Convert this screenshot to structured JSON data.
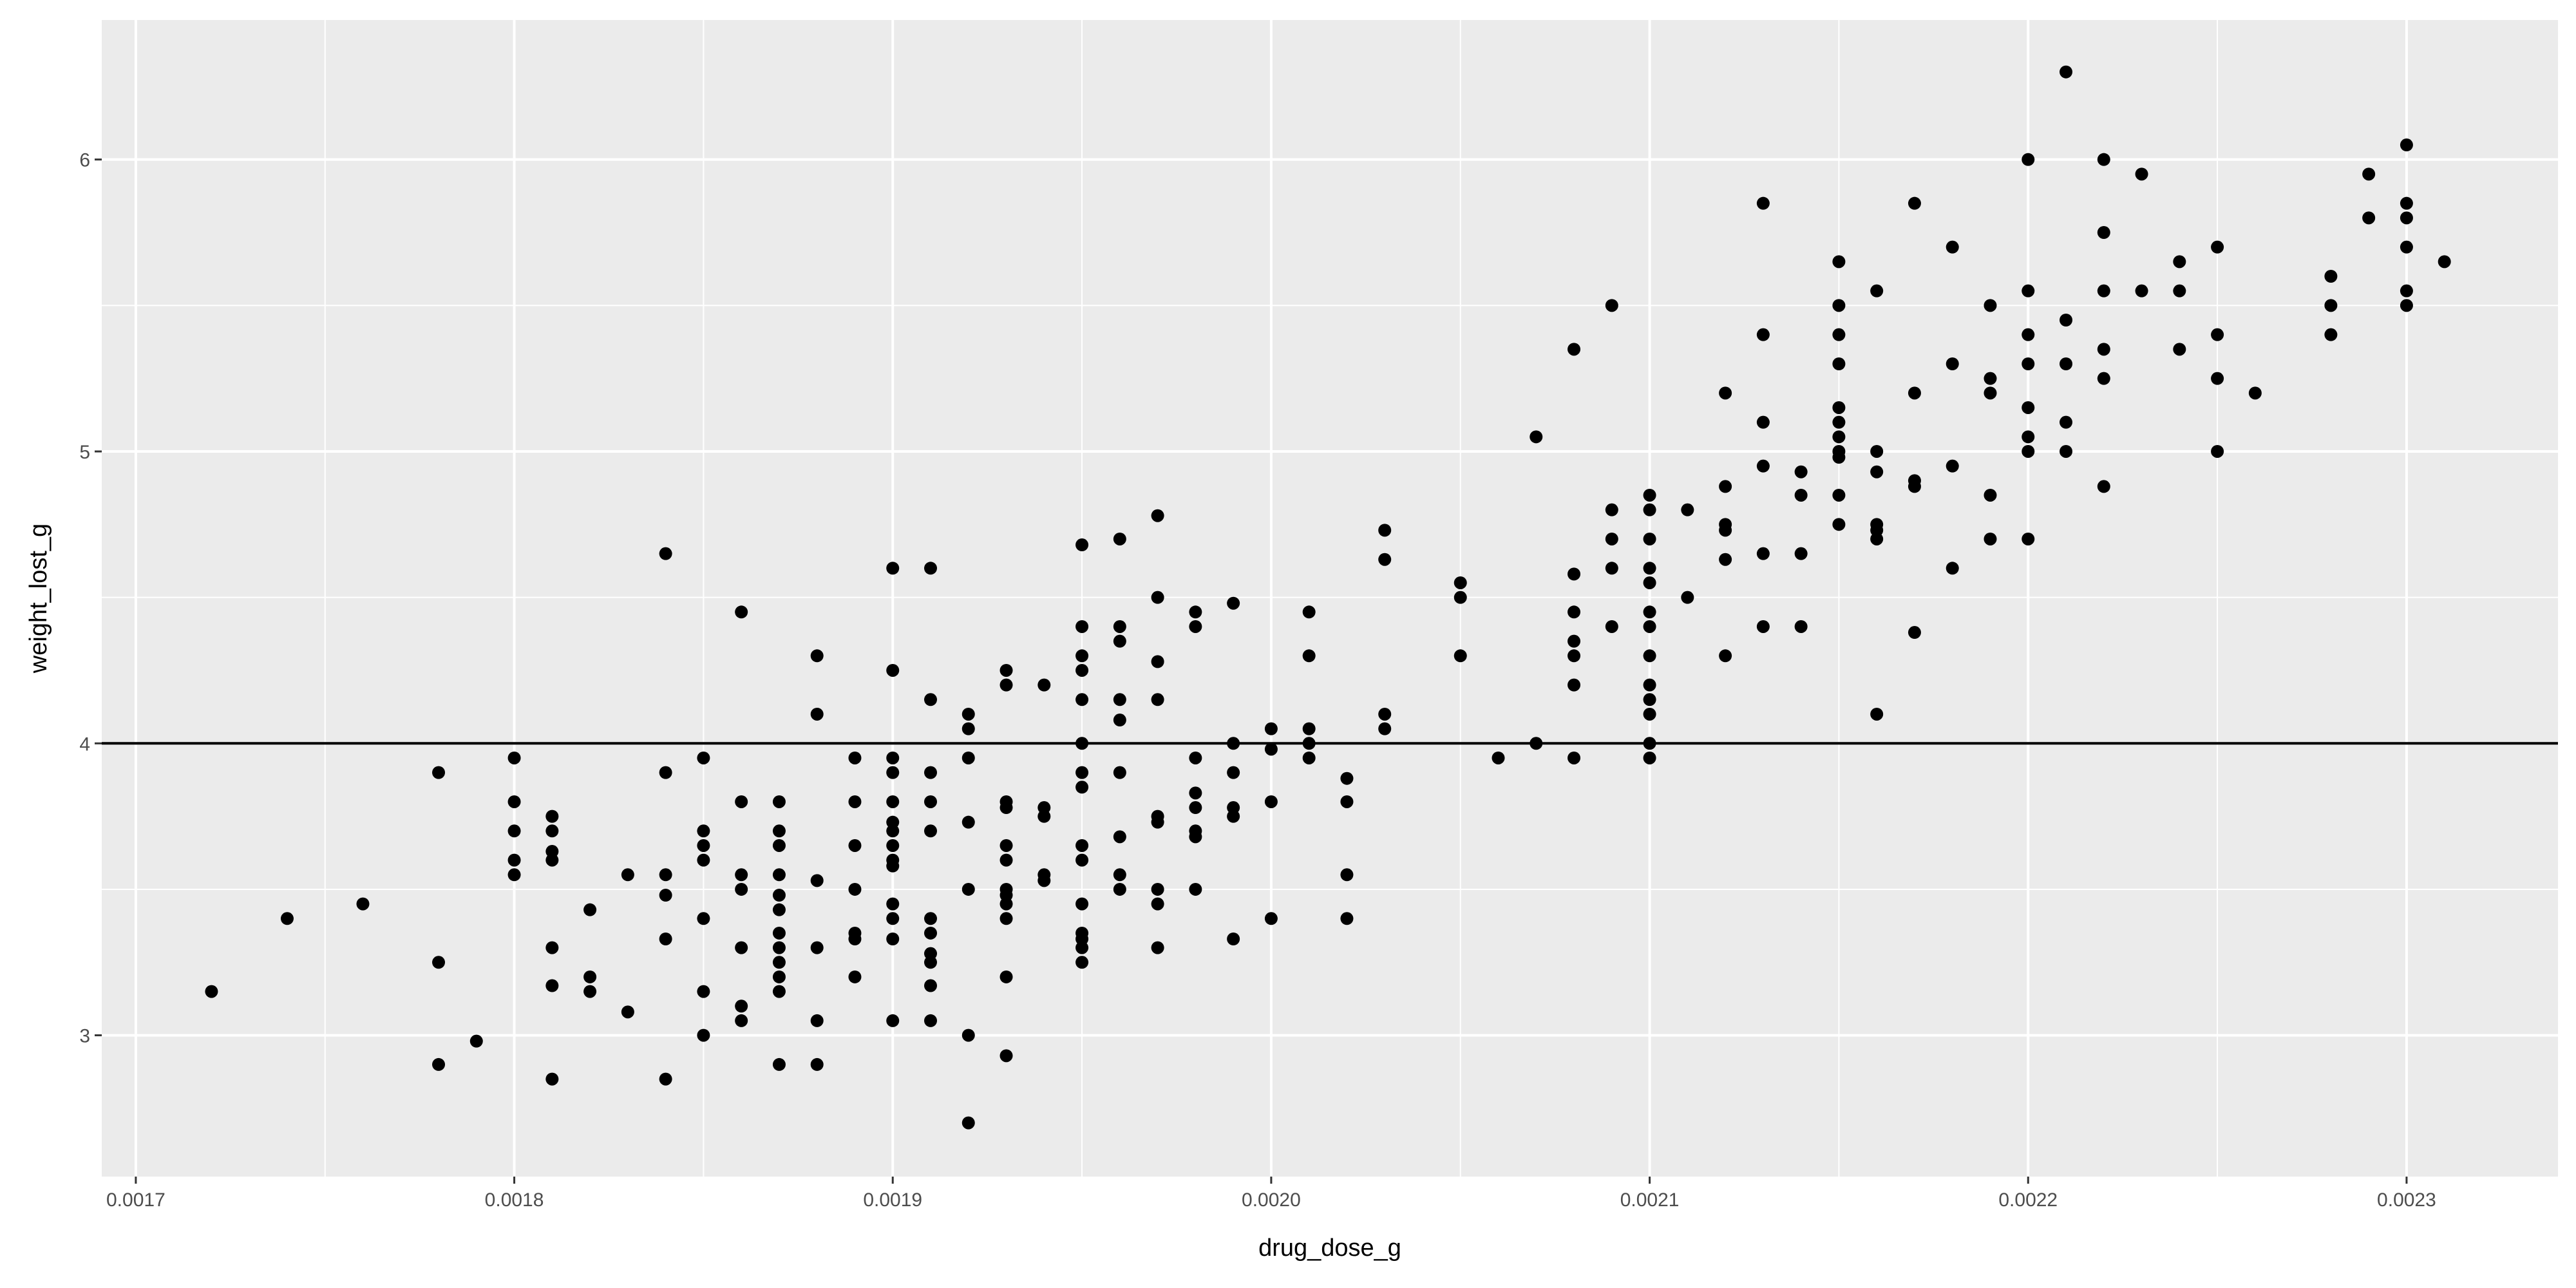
{
  "chart_data": {
    "type": "scatter",
    "x_label": "drug_dose_g",
    "y_label": "weight_lost_g",
    "xlim": [
      0.001691,
      0.00234
    ],
    "ylim": [
      2.516,
      6.478
    ],
    "xticks": [
      0.0017,
      0.0018,
      0.0019,
      {
        "value": 0.002,
        "label": "0.0020"
      },
      0.0021,
      0.0022,
      0.0023
    ],
    "yticks": [
      3,
      4,
      5,
      6
    ],
    "grid": true,
    "color": "#000000",
    "hline": 4,
    "x": [
      0.00172,
      0.00174,
      0.00176,
      0.00178,
      0.00178,
      0.00178,
      0.00179,
      0.0018,
      0.0018,
      0.0018,
      0.0018,
      0.0018,
      0.00181,
      0.00181,
      0.00181,
      0.00181,
      0.00181,
      0.00181,
      0.00181,
      0.00182,
      0.00182,
      0.00182,
      0.00183,
      0.00183,
      0.00184,
      0.00184,
      0.00184,
      0.00184,
      0.00184,
      0.00184,
      0.00185,
      0.00185,
      0.00185,
      0.00185,
      0.00185,
      0.00185,
      0.00185,
      0.00186,
      0.00186,
      0.00186,
      0.00186,
      0.00186,
      0.00186,
      0.00186,
      0.00187,
      0.00187,
      0.00187,
      0.00187,
      0.00187,
      0.00187,
      0.00187,
      0.00187,
      0.00187,
      0.00187,
      0.00187,
      0.00187,
      0.00188,
      0.00188,
      0.00188,
      0.00188,
      0.00188,
      0.00188,
      0.00189,
      0.00189,
      0.00189,
      0.00189,
      0.00189,
      0.00189,
      0.00189,
      0.0019,
      0.0019,
      0.0019,
      0.0019,
      0.0019,
      0.0019,
      0.0019,
      0.0019,
      0.0019,
      0.0019,
      0.0019,
      0.0019,
      0.0019,
      0.0019,
      0.00191,
      0.00191,
      0.00191,
      0.00191,
      0.00191,
      0.00191,
      0.00191,
      0.00191,
      0.00191,
      0.00191,
      0.00191,
      0.00192,
      0.00192,
      0.00192,
      0.00192,
      0.00192,
      0.00192,
      0.00192,
      0.00193,
      0.00193,
      0.00193,
      0.00193,
      0.00193,
      0.00193,
      0.00193,
      0.00193,
      0.00193,
      0.00193,
      0.00193,
      0.00193,
      0.00194,
      0.00194,
      0.00194,
      0.00194,
      0.00194,
      0.00195,
      0.00195,
      0.00195,
      0.00195,
      0.00195,
      0.00195,
      0.00195,
      0.00195,
      0.00195,
      0.00195,
      0.00195,
      0.00195,
      0.00195,
      0.00195,
      0.00195,
      0.00196,
      0.00196,
      0.00196,
      0.00196,
      0.00196,
      0.00196,
      0.00196,
      0.00196,
      0.00196,
      0.00197,
      0.00197,
      0.00197,
      0.00197,
      0.00197,
      0.00197,
      0.00197,
      0.00197,
      0.00197,
      0.00198,
      0.00198,
      0.00198,
      0.00198,
      0.00198,
      0.00198,
      0.00198,
      0.00198,
      0.00199,
      0.00199,
      0.00199,
      0.00199,
      0.00199,
      0.00199,
      0.002,
      0.002,
      0.002,
      0.002,
      0.00201,
      0.00201,
      0.00201,
      0.00201,
      0.00201,
      0.00202,
      0.00202,
      0.00202,
      0.00202,
      0.00203,
      0.00203,
      0.00203,
      0.00203,
      0.00205,
      0.00205,
      0.00205,
      0.00206,
      0.00207,
      0.00207,
      0.00208,
      0.00208,
      0.00208,
      0.00208,
      0.00208,
      0.00208,
      0.00208,
      0.00209,
      0.00209,
      0.00209,
      0.00209,
      0.00209,
      0.0021,
      0.0021,
      0.0021,
      0.0021,
      0.0021,
      0.0021,
      0.0021,
      0.0021,
      0.0021,
      0.0021,
      0.0021,
      0.0021,
      0.0021,
      0.00211,
      0.00211,
      0.00212,
      0.00212,
      0.00212,
      0.00212,
      0.00212,
      0.00212,
      0.00213,
      0.00213,
      0.00213,
      0.00213,
      0.00213,
      0.00213,
      0.00214,
      0.00214,
      0.00214,
      0.00214,
      0.00215,
      0.00215,
      0.00215,
      0.00215,
      0.00215,
      0.00215,
      0.00215,
      0.00215,
      0.00215,
      0.00215,
      0.00215,
      0.00216,
      0.00216,
      0.00216,
      0.00216,
      0.00216,
      0.00216,
      0.00216,
      0.00217,
      0.00217,
      0.00217,
      0.00217,
      0.00217,
      0.00218,
      0.00218,
      0.00218,
      0.00218,
      0.00219,
      0.00219,
      0.00219,
      0.00219,
      0.00219,
      0.0022,
      0.0022,
      0.0022,
      0.0022,
      0.0022,
      0.0022,
      0.0022,
      0.0022,
      0.00221,
      0.00221,
      0.00221,
      0.00221,
      0.00221,
      0.00222,
      0.00222,
      0.00222,
      0.00222,
      0.00222,
      0.00222,
      0.00223,
      0.00223,
      0.00224,
      0.00224,
      0.00224,
      0.00225,
      0.00225,
      0.00225,
      0.00225,
      0.00226,
      0.00228,
      0.00228,
      0.00228,
      0.00229,
      0.00229,
      0.0023,
      0.0023,
      0.0023,
      0.0023,
      0.0023,
      0.0023,
      0.00231
    ],
    "values": [
      3.15,
      3.4,
      3.45,
      3.9,
      3.25,
      2.9,
      2.98,
      3.95,
      3.8,
      3.7,
      3.6,
      3.55,
      3.75,
      3.7,
      3.63,
      3.6,
      3.3,
      3.17,
      2.85,
      3.43,
      3.2,
      3.15,
      3.55,
      3.08,
      4.65,
      3.9,
      3.55,
      3.48,
      3.33,
      2.85,
      3.95,
      3.7,
      3.65,
      3.6,
      3.4,
      3.15,
      3.0,
      4.45,
      3.8,
      3.55,
      3.5,
      3.3,
      3.1,
      3.05,
      3.8,
      3.7,
      3.65,
      3.55,
      3.48,
      3.43,
      3.35,
      3.3,
      3.25,
      3.2,
      3.15,
      2.9,
      4.3,
      4.1,
      3.53,
      3.3,
      3.05,
      2.9,
      3.95,
      3.8,
      3.65,
      3.5,
      3.35,
      3.33,
      3.2,
      4.6,
      4.25,
      3.95,
      3.9,
      3.8,
      3.73,
      3.7,
      3.65,
      3.6,
      3.58,
      3.45,
      3.4,
      3.33,
      3.05,
      4.6,
      4.15,
      3.9,
      3.8,
      3.7,
      3.4,
      3.35,
      3.28,
      3.25,
      3.17,
      3.05,
      4.1,
      4.05,
      3.95,
      3.73,
      3.5,
      3.0,
      2.7,
      4.25,
      4.2,
      3.8,
      3.78,
      3.65,
      3.6,
      3.5,
      3.48,
      3.45,
      3.4,
      3.2,
      2.93,
      4.2,
      3.78,
      3.75,
      3.55,
      3.53,
      4.68,
      4.4,
      4.3,
      4.25,
      4.15,
      4.0,
      3.9,
      3.85,
      3.65,
      3.6,
      3.45,
      3.35,
      3.33,
      3.3,
      3.25,
      4.7,
      4.4,
      4.35,
      4.15,
      4.08,
      3.9,
      3.68,
      3.55,
      3.5,
      4.78,
      4.5,
      4.28,
      4.15,
      3.75,
      3.73,
      3.5,
      3.45,
      3.3,
      4.45,
      4.4,
      3.95,
      3.83,
      3.78,
      3.7,
      3.68,
      3.5,
      4.48,
      4.0,
      3.9,
      3.78,
      3.75,
      3.33,
      4.05,
      3.98,
      3.8,
      3.4,
      4.45,
      4.3,
      4.05,
      4.0,
      3.95,
      3.88,
      3.8,
      3.55,
      3.4,
      4.73,
      4.63,
      4.1,
      4.05,
      4.55,
      4.5,
      4.3,
      3.95,
      5.05,
      4.0,
      5.35,
      4.58,
      4.45,
      4.35,
      4.3,
      4.2,
      3.95,
      5.5,
      4.8,
      4.7,
      4.6,
      4.4,
      4.85,
      4.8,
      4.7,
      4.6,
      4.55,
      4.45,
      4.4,
      4.3,
      4.2,
      4.15,
      4.1,
      4.0,
      3.95,
      4.8,
      4.5,
      5.2,
      4.88,
      4.75,
      4.73,
      4.63,
      4.3,
      5.85,
      5.4,
      5.1,
      4.95,
      4.65,
      4.4,
      4.93,
      4.85,
      4.65,
      4.4,
      5.65,
      5.5,
      5.4,
      5.3,
      5.15,
      5.1,
      5.05,
      5.0,
      4.98,
      4.85,
      4.75,
      5.55,
      5.0,
      4.93,
      4.75,
      4.73,
      4.7,
      4.1,
      5.85,
      5.2,
      4.9,
      4.88,
      4.38,
      5.7,
      5.3,
      4.95,
      4.6,
      5.5,
      5.25,
      5.2,
      4.85,
      4.7,
      6.0,
      5.55,
      5.4,
      5.3,
      5.15,
      5.05,
      5.0,
      4.7,
      6.3,
      5.45,
      5.3,
      5.1,
      5.0,
      6.0,
      5.75,
      5.55,
      5.35,
      5.25,
      4.88,
      5.95,
      5.55,
      5.65,
      5.55,
      5.35,
      5.7,
      5.4,
      5.25,
      5.0,
      5.2,
      5.6,
      5.5,
      5.4,
      5.95,
      5.8,
      6.05,
      5.85,
      5.8,
      5.7,
      5.55,
      5.5,
      5.65
    ]
  }
}
